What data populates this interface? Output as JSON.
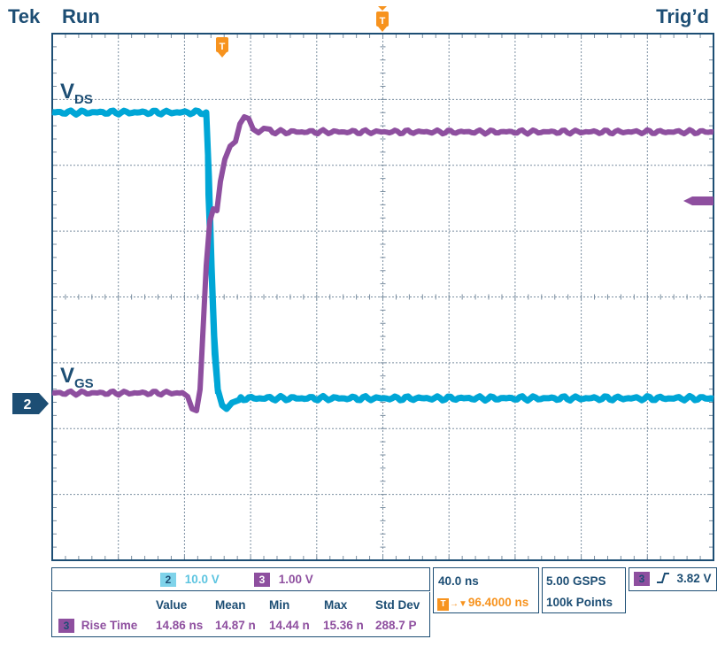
{
  "header": {
    "brand": "Tek",
    "state": "Run",
    "trigger_status": "Trig’d"
  },
  "trigger_marker": "T",
  "channel_marker": "2",
  "labels": {
    "vds": {
      "main": "V",
      "sub": "DS"
    },
    "vgs": {
      "main": "V",
      "sub": "GS"
    }
  },
  "colors": {
    "frame": "#1d4e74",
    "ch2": "#00a6d6",
    "ch3": "#8e4f9f",
    "trigger": "#f7931e"
  },
  "channels": {
    "ch2": {
      "number": "2",
      "scale": "10.0 V"
    },
    "ch3": {
      "number": "3",
      "scale": "1.00 V"
    }
  },
  "timebase": {
    "per_div": "40.0 ns",
    "delay": "96.4000 ns"
  },
  "acquisition": {
    "sample_rate": "5.00 GSPS",
    "record_length": "100k Points"
  },
  "trigger": {
    "source": "3",
    "slope_icon": "rising-edge-icon",
    "level": "3.82 V"
  },
  "measurement": {
    "headers": [
      "Value",
      "Mean",
      "Min",
      "Max",
      "Std Dev"
    ],
    "channel": "3",
    "name": "Rise Time",
    "values": [
      "14.86 ns",
      "14.87 n",
      "14.44 n",
      "15.36 n",
      "288.7 P"
    ]
  }
}
